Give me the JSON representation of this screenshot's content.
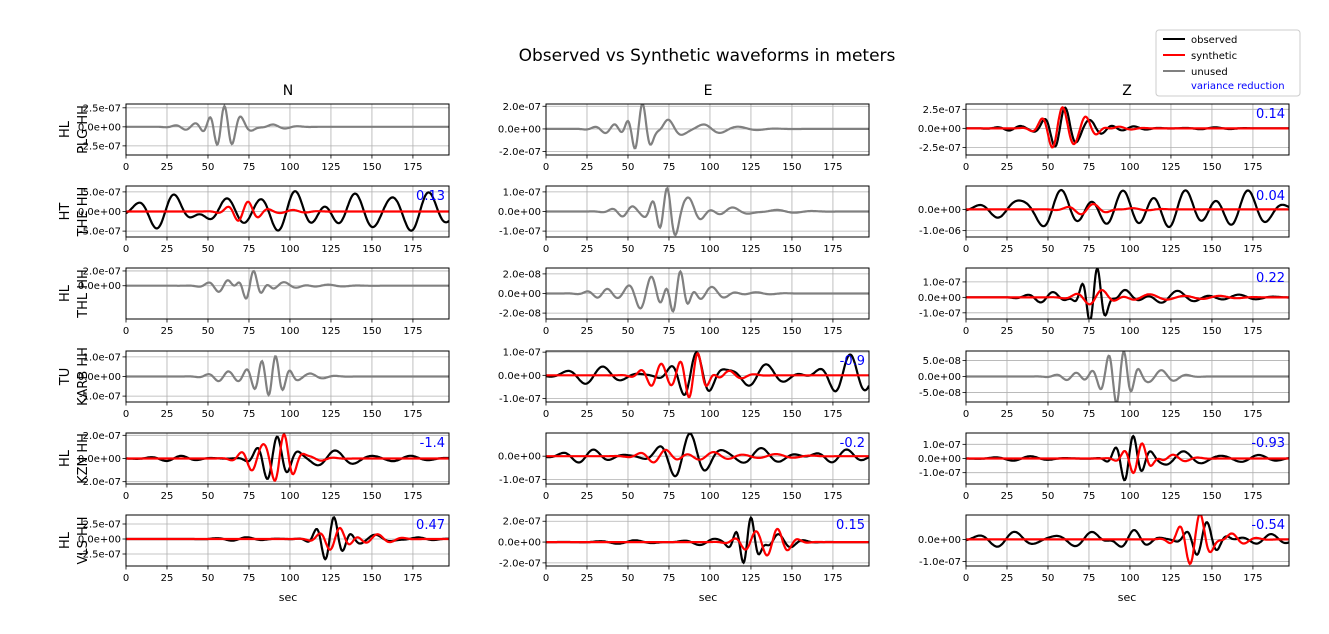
{
  "title": "Observed vs Synthetic waveforms in meters",
  "x_axis_label": "sec",
  "component_titles": [
    "N",
    "E",
    "Z"
  ],
  "legend": {
    "entries": [
      {
        "label": "observed",
        "color": "#000000"
      },
      {
        "label": "synthetic",
        "color": "#ff0000"
      },
      {
        "label": "unused",
        "color": "#808080"
      }
    ],
    "vr_label": "variance reduction",
    "vr_color": "#0000ff",
    "placement": "top-right"
  },
  "colors": {
    "observed": "#000000",
    "synthetic": "#ff0000",
    "unused": "#808080",
    "vr": "#0000ff",
    "grid": "#b0b0b0"
  },
  "stations": [
    {
      "network": "HL",
      "label": "PLG HH"
    },
    {
      "network": "HT",
      "label": "THE HH"
    },
    {
      "network": "HL",
      "label": "THL HH"
    },
    {
      "network": "TU",
      "label": "KARB HH"
    },
    {
      "network": "HL",
      "label": "KZN HH"
    },
    {
      "network": "HL",
      "label": "VLS HH"
    }
  ],
  "chart_data": {
    "type": "line",
    "x_range": [
      0,
      197
    ],
    "x_ticks": [
      0,
      25,
      50,
      75,
      100,
      125,
      150,
      175
    ],
    "x_tick_labels": [
      "0",
      "25",
      "50",
      "75",
      "100",
      "125",
      "150",
      "175"
    ],
    "grid": true,
    "panels": [
      {
        "row": 0,
        "component": "N",
        "used": false,
        "ylim": [
          -3.7e-07,
          3e-07
        ],
        "y_ticks": [
          2.5e-07,
          0,
          -2.5e-07
        ],
        "y_tick_labels": [
          "2.5e-07",
          "0.0e+00",
          "-2.5e-07"
        ],
        "vr": "",
        "peak": 2.8e-07,
        "waves": [
          [
            40,
            8,
            0.15,
            0.3
          ],
          [
            58,
            6,
            1,
            0
          ],
          [
            68,
            8,
            0.35,
            0.5
          ],
          [
            88,
            10,
            0.12,
            1.0
          ]
        ]
      },
      {
        "row": 0,
        "component": "E",
        "used": false,
        "ylim": [
          -2.3e-07,
          2.2e-07
        ],
        "y_ticks": [
          2e-07,
          0,
          -2e-07
        ],
        "y_tick_labels": [
          "2.0e-07",
          "0.0e+00",
          "-2.0e-07"
        ],
        "vr": "",
        "peak": 2e-07,
        "waves": [
          [
            40,
            8,
            0.2,
            0.4
          ],
          [
            57,
            6,
            1,
            0.3
          ],
          [
            72,
            10,
            0.4,
            0.7
          ],
          [
            95,
            12,
            0.18,
            1.2
          ],
          [
            115,
            14,
            0.08,
            0.5
          ]
        ]
      },
      {
        "row": 0,
        "component": "Z",
        "used": true,
        "ylim": [
          -3.5e-07,
          3.2e-07
        ],
        "y_ticks": [
          2.5e-07,
          0,
          -2.5e-07
        ],
        "y_tick_labels": [
          "2.5e-07",
          "0.0e+00",
          "-2.5e-07"
        ],
        "vr": "0.14",
        "obs_peak": 2.6e-07,
        "obs_waves": [
          [
            30,
            9,
            0.12,
            0.2
          ],
          [
            58,
            8,
            1,
            0.4
          ],
          [
            75,
            9,
            0.4,
            1.1
          ],
          [
            100,
            10,
            0.1,
            0.6
          ],
          [
            150,
            12,
            0.05,
            0.9
          ]
        ],
        "syn_peak": 2.7e-07,
        "syn_waves": [
          [
            56,
            8,
            1,
            0.2
          ],
          [
            72,
            8,
            0.5,
            0.9
          ],
          [
            90,
            10,
            0.1,
            0.3
          ]
        ]
      },
      {
        "row": 1,
        "component": "N",
        "used": true,
        "ylim": [
          -6.5e-07,
          6.5e-07
        ],
        "y_ticks": [
          5e-07,
          0,
          -5e-07
        ],
        "y_tick_labels": [
          "5.0e-07",
          "0.0e+00",
          "-5.0e-07"
        ],
        "vr": "0.13",
        "obs_peak": 5.7e-07,
        "obs_waves": [
          [
            25,
            14,
            0.85,
            0.3
          ],
          [
            60,
            14,
            0.6,
            1.1
          ],
          [
            100,
            14,
            0.95,
            0.6
          ],
          [
            140,
            14,
            0.8,
            1.7
          ],
          [
            180,
            14,
            0.9,
            0.2
          ]
        ],
        "syn_peak": 2.6e-07,
        "syn_waves": [
          [
            72,
            8,
            1,
            0.3
          ],
          [
            100,
            10,
            0.15,
            0.8
          ]
        ]
      },
      {
        "row": 1,
        "component": "E",
        "used": false,
        "ylim": [
          -1.3e-07,
          1.3e-07
        ],
        "y_ticks": [
          1e-07,
          0,
          -1e-07
        ],
        "y_tick_labels": [
          "1.0e-07",
          "0.0e+00",
          "-1.0e-07"
        ],
        "vr": "",
        "peak": 1.1e-07,
        "waves": [
          [
            50,
            8,
            0.25,
            0.2
          ],
          [
            72,
            6,
            1,
            0.1
          ],
          [
            85,
            10,
            0.7,
            0.8
          ],
          [
            110,
            12,
            0.2,
            0.4
          ],
          [
            140,
            14,
            0.08,
            1.3
          ]
        ]
      },
      {
        "row": 1,
        "component": "Z",
        "used": true,
        "ylim": [
          -1.3e-06,
          1.1e-06
        ],
        "y_ticks": [
          0,
          -1e-06
        ],
        "y_tick_labels": [
          "0.0e+00",
          "-1.0e-06"
        ],
        "vr": "0.04",
        "obs_peak": 9.5e-07,
        "obs_waves": [
          [
            25,
            14,
            0.45,
            0.2
          ],
          [
            55,
            14,
            1,
            0.6
          ],
          [
            95,
            14,
            0.95,
            1.3
          ],
          [
            130,
            14,
            1,
            0.4
          ],
          [
            170,
            14,
            0.95,
            1.0
          ]
        ],
        "syn_peak": 2.6e-07,
        "syn_waves": [
          [
            75,
            10,
            1,
            0.5
          ],
          [
            100,
            12,
            0.25,
            1.1
          ]
        ]
      },
      {
        "row": 2,
        "component": "N",
        "used": false,
        "ylim": [
          -4.5e-07,
          2.4e-07
        ],
        "y_ticks": [
          2e-07,
          0
        ],
        "y_tick_labels": [
          "2.0e-07",
          "0.0e+00"
        ],
        "vr": "",
        "peak": 2e-07,
        "waves": [
          [
            60,
            8,
            0.45,
            0.2
          ],
          [
            76,
            6,
            1,
            0.3
          ],
          [
            95,
            10,
            0.25,
            1.0
          ],
          [
            120,
            12,
            0.08,
            0.5
          ]
        ]
      },
      {
        "row": 2,
        "component": "E",
        "used": false,
        "ylim": [
          -2.6e-08,
          2.6e-08
        ],
        "y_ticks": [
          2e-08,
          0,
          -2e-08
        ],
        "y_tick_labels": [
          "2.0e-08",
          "0.0e+00",
          "-2.0e-08"
        ],
        "vr": "",
        "peak": 2.3e-08,
        "waves": [
          [
            35,
            8,
            0.2,
            0.3
          ],
          [
            62,
            9,
            0.75,
            0.5
          ],
          [
            80,
            6,
            1,
            0.2
          ],
          [
            100,
            10,
            0.3,
            1.1
          ],
          [
            125,
            12,
            0.06,
            0.6
          ]
        ]
      },
      {
        "row": 2,
        "component": "Z",
        "used": true,
        "ylim": [
          -1.4e-07,
          1.9e-07
        ],
        "y_ticks": [
          1e-07,
          0,
          -1e-07
        ],
        "y_tick_labels": [
          "1.0e-07",
          "0.0e+00",
          "-1.0e-07"
        ],
        "vr": "0.22",
        "obs_peak": 1.8e-07,
        "obs_waves": [
          [
            50,
            10,
            0.2,
            0.3
          ],
          [
            78,
            6,
            1,
            0.1
          ],
          [
            95,
            12,
            0.3,
            0.9
          ],
          [
            125,
            14,
            0.25,
            0.4
          ],
          [
            165,
            14,
            0.1,
            1.2
          ]
        ],
        "syn_peak": 5e-08,
        "syn_waves": [
          [
            80,
            10,
            1,
            0.4
          ],
          [
            110,
            14,
            0.4,
            1.0
          ],
          [
            150,
            14,
            0.2,
            0.2
          ]
        ]
      },
      {
        "row": 3,
        "component": "N",
        "used": false,
        "ylim": [
          -1.3e-07,
          1.3e-07
        ],
        "y_ticks": [
          1e-07,
          0,
          -1e-07
        ],
        "y_tick_labels": [
          "1.0e-07",
          "0.0e+00",
          "-1.0e-07"
        ],
        "vr": "",
        "peak": 1.3e-07,
        "waves": [
          [
            60,
            8,
            0.2,
            0.3
          ],
          [
            82,
            7,
            0.5,
            0.2
          ],
          [
            90,
            6,
            1,
            0.9
          ],
          [
            110,
            10,
            0.12,
            0.6
          ]
        ]
      },
      {
        "row": 3,
        "component": "E",
        "used": true,
        "ylim": [
          -1.15e-07,
          1.05e-07
        ],
        "y_ticks": [
          1e-07,
          0,
          -1e-07
        ],
        "y_tick_labels": [
          "1.0e-07",
          "0.0e+00",
          "-1.0e-07"
        ],
        "vr": "-0.9",
        "obs_peak": 1e-07,
        "obs_waves": [
          [
            30,
            14,
            0.4,
            0.2
          ],
          [
            90,
            10,
            1,
            0.8
          ],
          [
            130,
            14,
            0.5,
            0.3
          ],
          [
            185,
            12,
            0.9,
            1.4
          ]
        ],
        "syn_peak": 1e-07,
        "syn_waves": [
          [
            68,
            8,
            0.5,
            0.4
          ],
          [
            90,
            7,
            1,
            0.1
          ],
          [
            110,
            10,
            0.2,
            0.9
          ]
        ]
      },
      {
        "row": 3,
        "component": "Z",
        "used": false,
        "ylim": [
          -8e-08,
          8e-08
        ],
        "y_ticks": [
          5e-08,
          0,
          -5e-08
        ],
        "y_tick_labels": [
          "5.0e-08",
          "0.0e+00",
          "-5.0e-08"
        ],
        "vr": "",
        "peak": 8e-08,
        "waves": [
          [
            65,
            8,
            0.15,
            0.3
          ],
          [
            85,
            7,
            0.45,
            0.2
          ],
          [
            95,
            6,
            1,
            0.8
          ],
          [
            118,
            10,
            0.25,
            1.1
          ]
        ]
      },
      {
        "row": 4,
        "component": "N",
        "used": true,
        "ylim": [
          -2.2e-07,
          2.2e-07
        ],
        "y_ticks": [
          2e-07,
          0,
          -2e-07
        ],
        "y_tick_labels": [
          "2.0e-07",
          "0.0e+00",
          "-2.0e-07"
        ],
        "vr": "-1.4",
        "obs_peak": 2e-07,
        "obs_waves": [
          [
            30,
            12,
            0.12,
            0.3
          ],
          [
            90,
            8,
            1,
            0.4
          ],
          [
            125,
            14,
            0.35,
            0.8
          ],
          [
            170,
            14,
            0.12,
            0.5
          ]
        ],
        "syn_peak": 1.9e-07,
        "syn_waves": [
          [
            80,
            8,
            0.6,
            0.2
          ],
          [
            95,
            7,
            1,
            0.7
          ],
          [
            110,
            10,
            0.15,
            1.0
          ]
        ]
      },
      {
        "row": 4,
        "component": "E",
        "used": true,
        "ylim": [
          -1.2e-07,
          1e-07
        ],
        "y_ticks": [
          0,
          -1e-07
        ],
        "y_tick_labels": [
          "0.0e+00",
          "-1.0e-07"
        ],
        "vr": "-0.2",
        "obs_peak": 1e-07,
        "obs_waves": [
          [
            25,
            12,
            0.3,
            0.2
          ],
          [
            85,
            12,
            1,
            0.6
          ],
          [
            130,
            14,
            0.35,
            1.2
          ],
          [
            180,
            12,
            0.3,
            0.4
          ]
        ],
        "syn_peak": 3e-08,
        "syn_waves": [
          [
            70,
            10,
            1,
            0.3
          ],
          [
            100,
            12,
            0.6,
            0.8
          ],
          [
            140,
            14,
            0.3,
            1.5
          ]
        ]
      },
      {
        "row": 4,
        "component": "Z",
        "used": true,
        "ylim": [
          -1.8e-07,
          1.8e-07
        ],
        "y_ticks": [
          1e-07,
          0,
          -1e-07
        ],
        "y_tick_labels": [
          "1.0e-07",
          "0.0e+00",
          "-1.0e-07"
        ],
        "vr": "-0.93",
        "obs_peak": 1.7e-07,
        "obs_waves": [
          [
            35,
            14,
            0.1,
            0.3
          ],
          [
            100,
            7,
            1,
            0.4
          ],
          [
            130,
            14,
            0.3,
            0.8
          ],
          [
            175,
            14,
            0.15,
            0.5
          ]
        ],
        "syn_peak": 1.1e-07,
        "syn_waves": [
          [
            105,
            7,
            1,
            0.2
          ],
          [
            125,
            10,
            0.25,
            1.1
          ]
        ]
      },
      {
        "row": 5,
        "component": "N",
        "used": true,
        "ylim": [
          -4.5e-07,
          4e-07
        ],
        "y_ticks": [
          2.5e-07,
          0,
          -2.5e-07
        ],
        "y_tick_labels": [
          "2.5e-07",
          "0.0e+00",
          "-2.5e-07"
        ],
        "vr": "0.47",
        "obs_peak": 3.8e-07,
        "obs_waves": [
          [
            70,
            12,
            0.08,
            0.3
          ],
          [
            125,
            7,
            1,
            0.5
          ],
          [
            150,
            12,
            0.2,
            0.9
          ],
          [
            175,
            12,
            0.08,
            0.4
          ]
        ],
        "syn_peak": 2e-07,
        "syn_waves": [
          [
            128,
            8,
            1,
            0.3
          ],
          [
            152,
            10,
            0.4,
            1.0
          ]
        ]
      },
      {
        "row": 5,
        "component": "E",
        "used": true,
        "ylim": [
          -2.3e-07,
          2.6e-07
        ],
        "y_ticks": [
          2e-07,
          0,
          -2e-07
        ],
        "y_tick_labels": [
          "2.0e-07",
          "0.0e+00",
          "-2.0e-07"
        ],
        "vr": "0.15",
        "obs_peak": 2.2e-07,
        "obs_waves": [
          [
            50,
            14,
            0.08,
            0.3
          ],
          [
            100,
            12,
            0.15,
            0.6
          ],
          [
            123,
            6,
            1,
            0.2
          ],
          [
            140,
            10,
            0.35,
            0.9
          ]
        ],
        "syn_peak": 1.2e-07,
        "syn_waves": [
          [
            125,
            8,
            0.6,
            0.3
          ],
          [
            140,
            8,
            1,
            0.9
          ]
        ]
      },
      {
        "row": 5,
        "component": "Z",
        "used": true,
        "ylim": [
          -1.2e-07,
          1.1e-07
        ],
        "y_ticks": [
          0,
          -1e-07
        ],
        "y_tick_labels": [
          "0.0e+00",
          "-1.0e-07"
        ],
        "vr": "-0.54",
        "obs_peak": 8e-08,
        "obs_waves": [
          [
            25,
            14,
            0.45,
            0.2
          ],
          [
            75,
            14,
            0.45,
            0.9
          ],
          [
            100,
            10,
            0.5,
            0.4
          ],
          [
            145,
            8,
            1,
            0.6
          ],
          [
            185,
            12,
            0.3,
            1.2
          ]
        ],
        "syn_peak": 1.2e-07,
        "syn_waves": [
          [
            140,
            8,
            1,
            0.2
          ],
          [
            160,
            10,
            0.25,
            0.8
          ]
        ]
      }
    ]
  }
}
